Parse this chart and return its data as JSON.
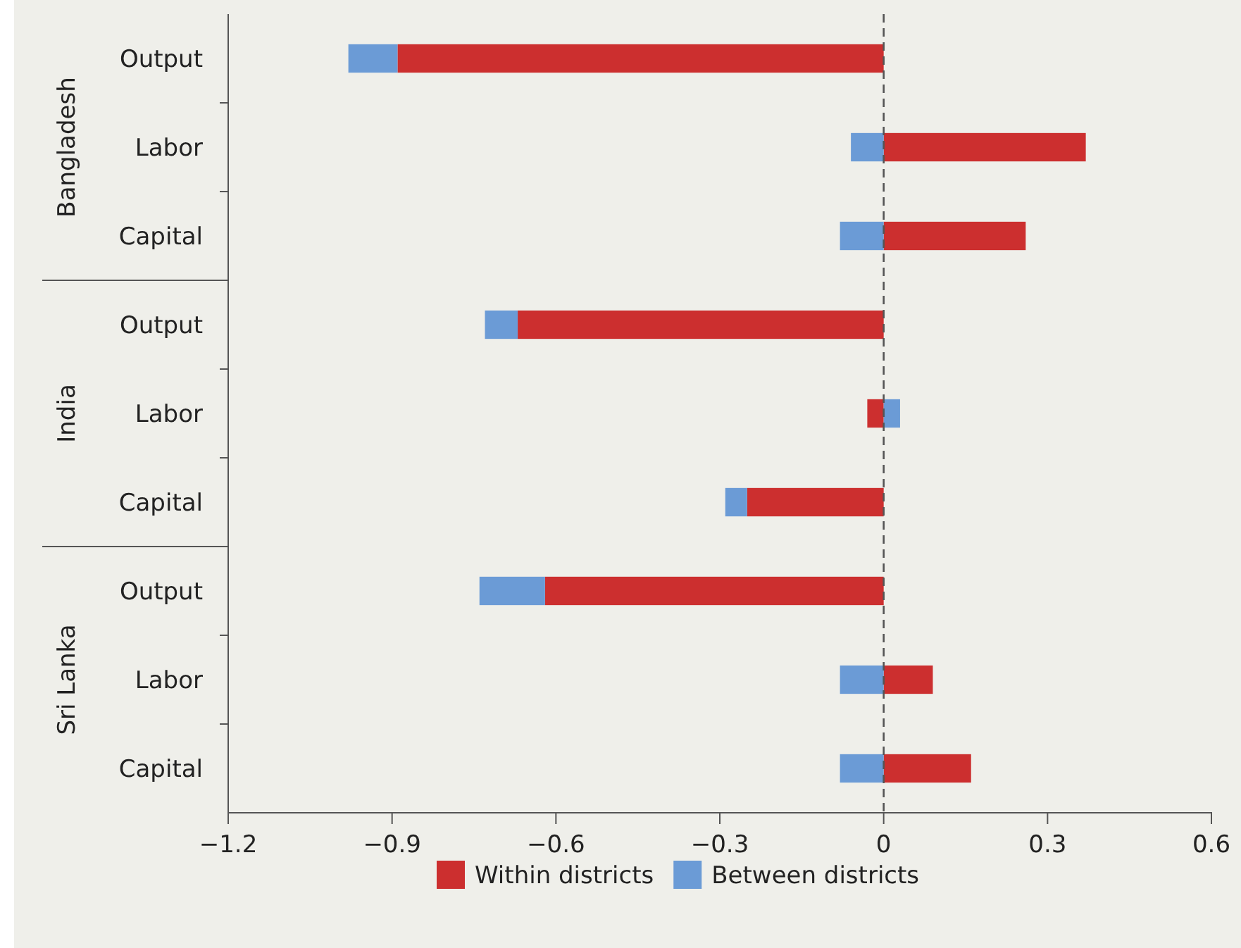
{
  "chart_data": {
    "type": "bar",
    "orientation": "horizontal",
    "stacked": true,
    "categories": [
      "Output",
      "Labor",
      "Capital",
      "Output",
      "Labor",
      "Capital",
      "Output",
      "Labor",
      "Capital"
    ],
    "series": [
      {
        "name": "Within districts",
        "color": "#cc2f2f",
        "values": [
          -0.89,
          0.37,
          0.26,
          -0.67,
          -0.03,
          -0.25,
          -0.62,
          0.09,
          0.16
        ]
      },
      {
        "name": "Between districts",
        "color": "#6b9bd6",
        "values": [
          -0.09,
          -0.06,
          -0.08,
          -0.06,
          0.03,
          -0.04,
          -0.12,
          -0.08,
          -0.08
        ]
      }
    ],
    "annotations": [
      "Bangladesh",
      "India",
      "Sri Lanka"
    ],
    "xlim": [
      -1.2,
      0.6
    ],
    "xticks": [
      {
        "value": -1.2,
        "label": "−1.2"
      },
      {
        "value": -0.9,
        "label": "−0.9"
      },
      {
        "value": -0.6,
        "label": "−0.6"
      },
      {
        "value": -0.3,
        "label": "−0.3"
      },
      0,
      0.3,
      0.6
    ],
    "ref_lines": [
      {
        "axis": "x",
        "value": 0,
        "line_style": "dashed",
        "color": "#555555"
      }
    ],
    "legend": "bottom"
  }
}
